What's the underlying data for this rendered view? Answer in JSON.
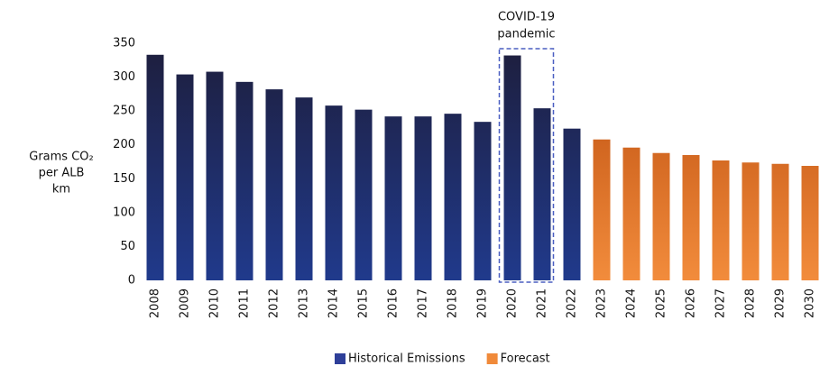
{
  "chart_data": {
    "type": "bar",
    "ylabel": [
      "Grams CO₂",
      "per ALB",
      "km"
    ],
    "categories": [
      "2008",
      "2009",
      "2010",
      "2011",
      "2012",
      "2013",
      "2014",
      "2015",
      "2016",
      "2017",
      "2018",
      "2019",
      "2020",
      "2021",
      "2022",
      "2023",
      "2024",
      "2025",
      "2026",
      "2027",
      "2028",
      "2029",
      "2030"
    ],
    "series": [
      {
        "name": "Historical Emissions",
        "color": "#2e3f99",
        "gradient": [
          "#1e1e3c",
          "#203a8c"
        ],
        "values": [
          333,
          304,
          308,
          293,
          282,
          270,
          258,
          252,
          242,
          242,
          246,
          234,
          332,
          254,
          224,
          null,
          null,
          null,
          null,
          null,
          null,
          null,
          null
        ]
      },
      {
        "name": "Forecast",
        "color": "#f08a3a",
        "gradient": [
          "#b94a0c",
          "#f28c3c"
        ],
        "values": [
          null,
          null,
          null,
          null,
          null,
          null,
          null,
          null,
          null,
          null,
          null,
          null,
          null,
          null,
          null,
          208,
          196,
          188,
          185,
          177,
          174,
          172,
          169
        ]
      }
    ],
    "ylim": [
      0,
      350
    ],
    "yticks": [
      0,
      50,
      100,
      150,
      200,
      250,
      300,
      350
    ],
    "annotation": {
      "lines": [
        "COVID-19",
        "pandemic"
      ],
      "span": [
        "2020",
        "2021"
      ],
      "color": "#4a5fc1"
    },
    "legend": "bottom"
  }
}
